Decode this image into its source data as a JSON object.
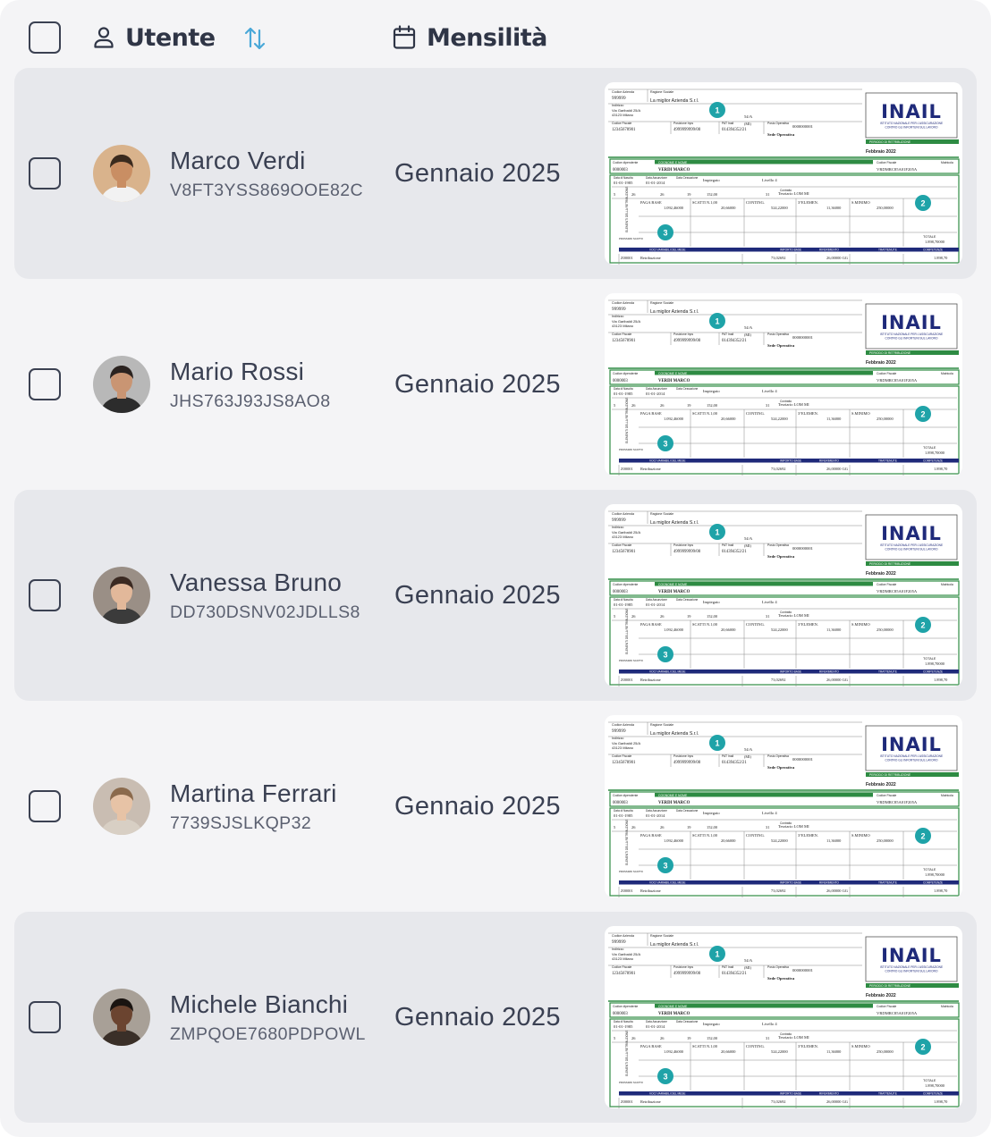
{
  "header": {
    "user_label": "Utente",
    "month_label": "Mensilità",
    "select_all_icon": "checkbox-empty",
    "user_icon": "user-icon",
    "sort_icon": "sort-arrows-icon",
    "calendar_icon": "calendar-icon",
    "sort_color": "#4aa8d8"
  },
  "rows": [
    {
      "name": "Marco Verdi",
      "code": "V8FT3YSS869OOE82C",
      "month": "Gennaio 2025",
      "shaded": true
    },
    {
      "name": "Mario Rossi",
      "code": "JHS763J93JS8AO8",
      "month": "Gennaio 2025",
      "shaded": false
    },
    {
      "name": "Vanessa Bruno",
      "code": "DD730DSNV02JDLLS8",
      "month": "Gennaio 2025",
      "shaded": true
    },
    {
      "name": "Martina Ferrari",
      "code": "7739SJSLKQP32",
      "month": "Gennaio 2025",
      "shaded": false
    },
    {
      "name": "Michele Bianchi",
      "code": "ZMPQOE7680PDPOWL",
      "month": "Gennaio 2025",
      "shaded": true
    }
  ],
  "payslip": {
    "logo": "INAIL",
    "logo_sub_1": "ISTITUTO NAZIONALE PER L'ASSICURAZIONE",
    "logo_sub_2": "CONTRO GLI INFORTUNI SUL LAVORO",
    "field_company_code": "Codice Azienda",
    "company_code": "999999",
    "field_company_name": "Ragione Sociale",
    "company_name": "La miglior Azienda S.r.l.",
    "field_address": "Indirizzo",
    "address_1": "Via Garibaldi 25/A",
    "address_2": "43123 Milano",
    "field_tax_code": "Codice Fiscale",
    "tax_code": "12345678901",
    "field_pos_inps": "Posizione Inps",
    "pos_inps": "4999999999/00",
    "field_pat_inail": "PAT Inail",
    "pat_inail": "014394352/21",
    "field_pos_op": "Posiz.Operativa",
    "pos_op": "0000000001",
    "prov": "(MI)",
    "num_54a": "54/A",
    "site": "Sede Operativa",
    "period_label": "PERIODO DI RETRIBUZIONE",
    "period": "Febbraio 2022",
    "field_emp_code": "Codice dipendente",
    "emp_code": "0000003",
    "field_emp_name": "COGNOME E NOME",
    "emp_name": "VERDI MARCO",
    "field_emp_tax": "Codice Fiscale",
    "emp_tax": "VRDMRC85A01F205A",
    "field_serial": "Matricola",
    "field_birth": "Data di Nascita",
    "birth": "01-01-1985",
    "field_hire": "Data Assunzione",
    "hire": "01-01-2014",
    "field_end": "Data Cessazione",
    "role": "Impiegato",
    "level": "Livello 4",
    "field_contract": "Contratto",
    "contract": "Terziario LOM MI",
    "n_5": "5",
    "n_26a": "26",
    "n_26b": "26",
    "n_19": "19",
    "n_152": "152,00",
    "n_31": "31",
    "base_label": "PAGA BASE",
    "base_value": "1.092,46000",
    "steps_label": "SCATTI N.1,00",
    "steps_value": "20,66000",
    "conting_label": "CONTING.",
    "conting_value": "524,22000",
    "elem_label": "3°ELEMEN.",
    "elem_value": "11,36000",
    "min_label": "S.MINIMO",
    "min_value": "250,00000",
    "total_label": "TOTALE",
    "total_value": "1.898,70000",
    "side_label": "ELEMENTI DELLA RETRIBUZIONE",
    "prom_label": "PROSSIMO SCATTO",
    "bar_voce": "VOCI VARIABILI DEL MESE",
    "bar_imp": "IMPORTO BASE",
    "bar_rif": "RIFERIMENTO",
    "bar_tratt": "TRATTENUTE",
    "bar_comp": "COMPETENZE",
    "line_code": "Z00001",
    "line_label": "Retribuzione",
    "line_base": "73,02692",
    "line_ref": "26,00000 GG",
    "line_comp": "1.898,70",
    "marker_1": "1",
    "marker_2": "2",
    "marker_3": "3",
    "green": "#2e8b43",
    "navy": "#1f2a7a",
    "teal": "#1fa3a8"
  }
}
